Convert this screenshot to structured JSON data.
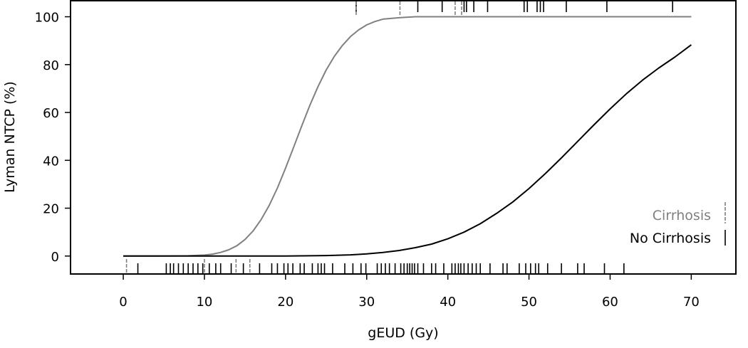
{
  "chart_data": {
    "type": "line",
    "title": "",
    "xlabel": "gEUD (Gy)",
    "ylabel": "Lyman NTCP (%)",
    "xlim": [
      -6.5,
      75.5
    ],
    "ylim": [
      -7.5,
      107
    ],
    "x_ticks": [
      "0",
      "10",
      "20",
      "30",
      "40",
      "50",
      "60",
      "70"
    ],
    "x_tick_values": [
      0,
      10,
      20,
      30,
      40,
      50,
      60,
      70
    ],
    "y_ticks": [
      "0",
      "20",
      "40",
      "60",
      "80",
      "100"
    ],
    "y_tick_values": [
      0,
      20,
      40,
      60,
      80,
      100
    ],
    "legend_position": "bottom-right",
    "series": [
      {
        "name": "Cirrhosis",
        "color": "#808080",
        "x": [
          0,
          4,
          8,
          10,
          11,
          12,
          13,
          14,
          15,
          16,
          17,
          18,
          19,
          20,
          21,
          22,
          23,
          24,
          25,
          26,
          27,
          28,
          29,
          30,
          31,
          32,
          34,
          36,
          40,
          50,
          60,
          70
        ],
        "y": [
          0,
          0,
          0.1,
          0.4,
          0.8,
          1.5,
          2.6,
          4.3,
          6.9,
          10.5,
          15.3,
          21.3,
          28.5,
          36.7,
          45.5,
          54.4,
          63.0,
          70.8,
          77.7,
          83.4,
          88.0,
          91.7,
          94.5,
          96.6,
          98.0,
          99.0,
          99.6,
          100,
          100,
          100,
          100,
          100
        ],
        "rug_position": "top",
        "rug_x": [
          0.4,
          10,
          13.9,
          15.6,
          28.7,
          34.1,
          40.9,
          41.7
        ]
      },
      {
        "name": "No Cirrhosis",
        "color": "#000000",
        "x": [
          0,
          10,
          20,
          25,
          28,
          30,
          32,
          34,
          36,
          38,
          40,
          42,
          44,
          46,
          48,
          50,
          52,
          54,
          56,
          58,
          60,
          62,
          64,
          66,
          68,
          70
        ],
        "y": [
          0,
          0,
          0,
          0.2,
          0.5,
          0.9,
          1.5,
          2.3,
          3.5,
          5.0,
          7.2,
          10.0,
          13.5,
          17.8,
          22.6,
          28.2,
          34.4,
          41.0,
          47.9,
          54.8,
          61.5,
          67.8,
          73.5,
          78.6,
          83.2,
          88.3
        ],
        "rug_position": "bottom",
        "rug_x": [
          1.8,
          5.3,
          5.8,
          6.2,
          6.8,
          7.4,
          8.0,
          8.6,
          9.2,
          9.8,
          10.6,
          11.4,
          12.0,
          13.3,
          14.8,
          16.8,
          18.3,
          19.0,
          19.8,
          20.3,
          20.9,
          21.8,
          22.3,
          23.3,
          24.0,
          24.4,
          24.8,
          25.8,
          27.3,
          28.3,
          29.3,
          29.9,
          31.3,
          31.8,
          32.3,
          32.8,
          33.5,
          34.2,
          34.6,
          35.0,
          35.3,
          35.6,
          35.9,
          36.3,
          37.0,
          38.0,
          38.5,
          39.5,
          40.5,
          40.9,
          41.3,
          41.6,
          42.0,
          42.5,
          43.0,
          43.5,
          44.0,
          45.2,
          46.8,
          47.3,
          48.8,
          49.6,
          50.2,
          50.8,
          51.2,
          52.3,
          54.0,
          56.0,
          56.8,
          59.3,
          61.7,
          28.7,
          36.3,
          39.3,
          42.0,
          42.3,
          43.2,
          44.9,
          49.4,
          49.8,
          51.0,
          51.4,
          51.8,
          54.6,
          59.6,
          67.7
        ],
        "rug_top_x": [
          28.7,
          36.3,
          39.3,
          42.0,
          42.3,
          43.2,
          44.9,
          49.4,
          49.8,
          51.0,
          51.4,
          51.8,
          54.6,
          59.6,
          67.7
        ]
      }
    ]
  }
}
